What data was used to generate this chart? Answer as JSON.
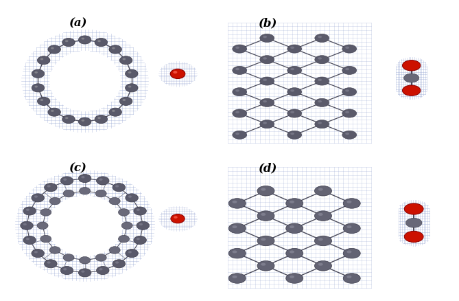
{
  "figure_width": 6.69,
  "figure_height": 4.39,
  "dpi": 100,
  "bg_color": "#ffffff",
  "panels": [
    "(a)",
    "(b)",
    "(c)",
    "(d)"
  ],
  "panel_label_fontsize": 12,
  "panel_label_fontweight": "bold",
  "blue_density_color": "#8899cc",
  "carbon_color": "#5a5a6a",
  "carbon_edge": "#3a3a4a",
  "red_color": "#cc1100",
  "red_edge": "#880000",
  "bond_color": "#4a4a5a"
}
